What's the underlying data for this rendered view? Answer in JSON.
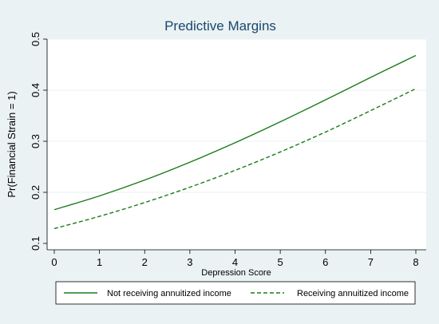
{
  "chart_data": {
    "type": "line",
    "title": "Predictive Margins",
    "xlabel": "Depression Score",
    "ylabel": "Pr(Financial Strain = 1)",
    "x": [
      0,
      1,
      2,
      3,
      4,
      5,
      6,
      7,
      8
    ],
    "xticks": [
      "0",
      "1",
      "2",
      "3",
      "4",
      "5",
      "6",
      "7",
      "8"
    ],
    "yticks": [
      "0.1",
      "0.2",
      "0.3",
      "0.4",
      "0.5"
    ],
    "xlim": [
      0,
      8
    ],
    "ylim": [
      0.1,
      0.5
    ],
    "grid": "horizontal",
    "legend_position": "bottom",
    "series": [
      {
        "name": "Not receiving annuitized income",
        "style": "solid",
        "color": "#1a7a1a",
        "values": [
          0.166,
          0.193,
          0.224,
          0.259,
          0.297,
          0.338,
          0.381,
          0.425,
          0.468
        ]
      },
      {
        "name": "Receiving annuitized income",
        "style": "dashed",
        "color": "#1a7a1a",
        "values": [
          0.129,
          0.153,
          0.18,
          0.21,
          0.243,
          0.279,
          0.318,
          0.36,
          0.403
        ]
      }
    ]
  },
  "colors": {
    "background": "#eaf2f3",
    "plot_area": "#ffffff",
    "title": "#1a476f",
    "grid": "#eaf2f3",
    "line": "#1a7a1a"
  }
}
